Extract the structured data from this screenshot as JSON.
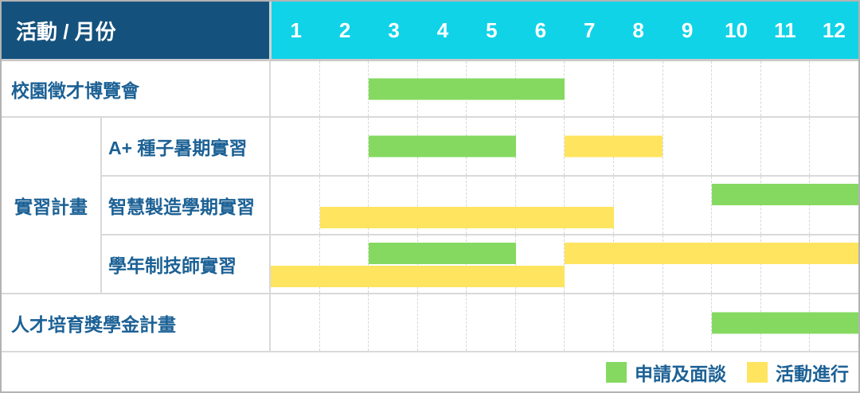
{
  "header": {
    "title": "活動 / 月份"
  },
  "theme": {
    "header_blue": "#14527d",
    "month_header_cyan": "#10d3e8",
    "label_text_blue": "#1c6195",
    "apply_green": "#85d960",
    "ongoing_yellow": "#ffe45f",
    "outer_border_gray": "#b3b3b3",
    "grid_line_gray": "#d9d9d9"
  },
  "chart_data": {
    "type": "gantt",
    "orientation": "horizontal-timeline",
    "title": "活動 / 月份",
    "months": [
      "1",
      "2",
      "3",
      "4",
      "5",
      "6",
      "7",
      "8",
      "9",
      "10",
      "11",
      "12"
    ],
    "x_range": [
      1,
      12
    ],
    "grid": "dashed vertical month separators, solid row separators",
    "group_label": "實習計畫",
    "colors": {
      "apply": "#85d960",
      "ongoing": "#ffe45f"
    },
    "rows": [
      {
        "label": "校園徵才博覽會",
        "group": null,
        "bars": [
          {
            "kind": "apply",
            "start_month": 3,
            "end_month": 6,
            "lane": "mid"
          }
        ]
      },
      {
        "label": "A+ 種子暑期實習",
        "group": "實習計畫",
        "bars": [
          {
            "kind": "apply",
            "start_month": 3,
            "end_month": 5,
            "lane": "mid"
          },
          {
            "kind": "ongoing",
            "start_month": 7,
            "end_month": 8,
            "lane": "mid"
          }
        ]
      },
      {
        "label": "智慧製造學期實習",
        "group": "實習計畫",
        "bars": [
          {
            "kind": "apply",
            "start_month": 10,
            "end_month": 12,
            "lane": "top"
          },
          {
            "kind": "ongoing",
            "start_month": 2,
            "end_month": 7,
            "lane": "bottom"
          }
        ]
      },
      {
        "label": "學年制技師實習",
        "group": "實習計畫",
        "bars": [
          {
            "kind": "apply",
            "start_month": 3,
            "end_month": 5,
            "lane": "top"
          },
          {
            "kind": "ongoing",
            "start_month": 7,
            "end_month": 12,
            "lane": "top"
          },
          {
            "kind": "ongoing",
            "start_month": 1,
            "end_month": 6,
            "lane": "bottom"
          }
        ]
      },
      {
        "label": "人才培育獎學金計畫",
        "group": null,
        "bars": [
          {
            "kind": "apply",
            "start_month": 10,
            "end_month": 12,
            "lane": "mid"
          }
        ]
      }
    ],
    "legend": [
      {
        "kind": "apply",
        "label": "申請及面談",
        "color": "#85d960"
      },
      {
        "kind": "ongoing",
        "label": "活動進行",
        "color": "#ffe45f"
      }
    ],
    "legend_position": "bottom-right"
  }
}
